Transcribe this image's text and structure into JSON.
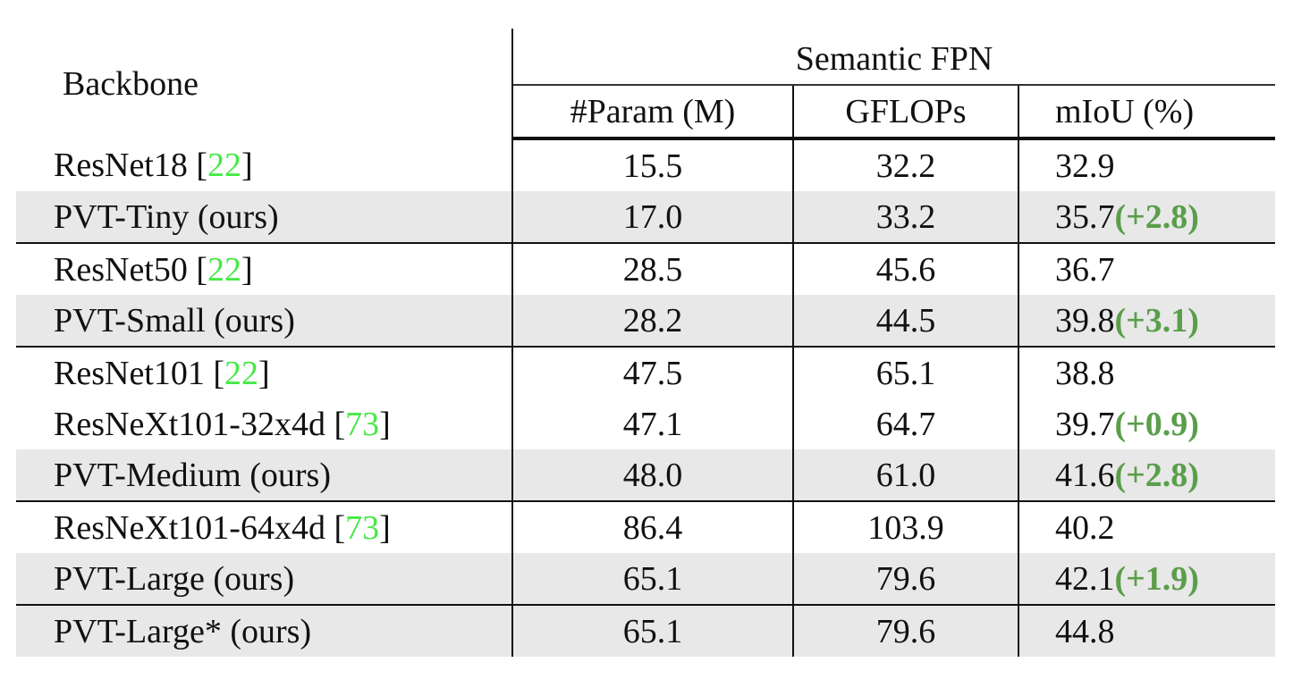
{
  "table": {
    "header": {
      "backbone": "Backbone",
      "group": "Semantic FPN",
      "columns": [
        "#Param (M)",
        "GFLOPs",
        "mIoU (%)"
      ]
    },
    "rows": [
      {
        "name": "ResNet18 [",
        "cite": "22",
        "name_end": "]",
        "param": "15.5",
        "gflops": "32.2",
        "miou": "32.9",
        "delta": ""
      },
      {
        "name": "PVT-Tiny (ours)",
        "cite": "",
        "name_end": "",
        "param": "17.0",
        "gflops": "33.2",
        "miou": "35.7",
        "delta": "(+2.8)"
      },
      {
        "name": "ResNet50 [",
        "cite": "22",
        "name_end": "]",
        "param": "28.5",
        "gflops": "45.6",
        "miou": "36.7",
        "delta": ""
      },
      {
        "name": "PVT-Small (ours)",
        "cite": "",
        "name_end": "",
        "param": "28.2",
        "gflops": "44.5",
        "miou": "39.8",
        "delta": "(+3.1)"
      },
      {
        "name": "ResNet101 [",
        "cite": "22",
        "name_end": "]",
        "param": "47.5",
        "gflops": "65.1",
        "miou": "38.8",
        "delta": ""
      },
      {
        "name": "ResNeXt101-32x4d [",
        "cite": "73",
        "name_end": "]",
        "param": "47.1",
        "gflops": "64.7",
        "miou": "39.7",
        "delta": "(+0.9)"
      },
      {
        "name": "PVT-Medium (ours)",
        "cite": "",
        "name_end": "",
        "param": "48.0",
        "gflops": "61.0",
        "miou": "41.6",
        "delta": "(+2.8)"
      },
      {
        "name": "ResNeXt101-64x4d [",
        "cite": "73",
        "name_end": "]",
        "param": "86.4",
        "gflops": "103.9",
        "miou": "40.2",
        "delta": ""
      },
      {
        "name": "PVT-Large (ours)",
        "cite": "",
        "name_end": "",
        "param": "65.1",
        "gflops": "79.6",
        "miou": "42.1",
        "delta": "(+1.9)"
      },
      {
        "name": "PVT-Large* (ours)",
        "cite": "",
        "name_end": "",
        "param": "65.1",
        "gflops": "79.6",
        "miou": "44.8",
        "delta": ""
      }
    ]
  },
  "colors": {
    "citation": "#46e946",
    "improvement": "#5a9e4a",
    "shaded_row": "#e8e8e8"
  }
}
